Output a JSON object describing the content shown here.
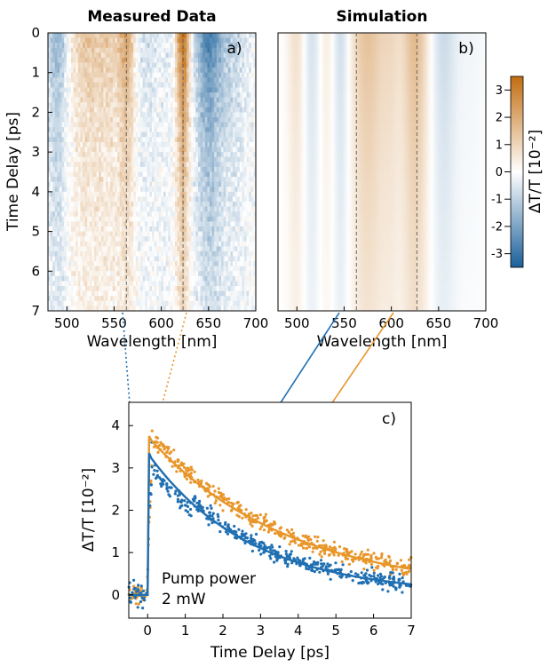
{
  "chart_data": [
    {
      "panel": "a)",
      "type": "heatmap",
      "title": "Measured Data",
      "xlabel": "Wavelength [nm]",
      "ylabel": "Time Delay [ps]",
      "xlim": [
        480,
        700
      ],
      "ylim": [
        7,
        0
      ],
      "x_ticks": [
        "500",
        "550",
        "600",
        "650",
        "700"
      ],
      "y_ticks": [
        "0",
        "1",
        "2",
        "3",
        "4",
        "5",
        "6",
        "7"
      ],
      "markers_nm": [
        563,
        623
      ],
      "bands": [
        {
          "center_nm": 490,
          "width_nm": 8,
          "peak": -1.8
        },
        {
          "center_nm": 522,
          "width_nm": 14,
          "peak": 1.4
        },
        {
          "center_nm": 545,
          "width_nm": 8,
          "peak": 0.9
        },
        {
          "center_nm": 563,
          "width_nm": 6,
          "peak": 2.3
        },
        {
          "center_nm": 585,
          "width_nm": 9,
          "peak": -0.7
        },
        {
          "center_nm": 606,
          "width_nm": 6,
          "peak": -0.4
        },
        {
          "center_nm": 623,
          "width_nm": 5,
          "peak": 3.6
        },
        {
          "center_nm": 650,
          "width_nm": 10,
          "peak": -2.8
        },
        {
          "center_nm": 675,
          "width_nm": 12,
          "peak": -1.0
        }
      ]
    },
    {
      "panel": "b)",
      "type": "heatmap",
      "title": "Simulation",
      "xlabel": "Wavelength [nm]",
      "xlim": [
        480,
        700
      ],
      "ylim": [
        7,
        0
      ],
      "x_ticks": [
        "500",
        "550",
        "600",
        "650",
        "700"
      ],
      "markers_nm": [
        563,
        627
      ],
      "bands": [
        {
          "center_nm": 500,
          "width_nm": 7,
          "peak": 0.8
        },
        {
          "center_nm": 515,
          "width_nm": 7,
          "peak": -0.7
        },
        {
          "center_nm": 532,
          "width_nm": 6,
          "peak": 0.5
        },
        {
          "center_nm": 547,
          "width_nm": 7,
          "peak": -0.9
        },
        {
          "center_nm": 575,
          "width_nm": 14,
          "peak": 1.5
        },
        {
          "center_nm": 600,
          "width_nm": 7,
          "peak": 0.6
        },
        {
          "center_nm": 625,
          "width_nm": 10,
          "peak": 1.7
        },
        {
          "center_nm": 655,
          "width_nm": 10,
          "peak": -0.8
        },
        {
          "center_nm": 685,
          "width_nm": 12,
          "peak": -0.2
        }
      ]
    },
    {
      "panel": "c)",
      "type": "scatter",
      "xlabel": "Time Delay [ps]",
      "ylabel": "ΔT/T [10⁻²]",
      "xlim": [
        -0.5,
        7
      ],
      "ylim": [
        -0.55,
        4.55
      ],
      "x_ticks": [
        "0",
        "1",
        "2",
        "3",
        "4",
        "5",
        "6",
        "7"
      ],
      "y_ticks": [
        "0",
        "1",
        "2",
        "3",
        "4"
      ],
      "annotation": [
        "Pump power",
        "2 mW"
      ],
      "series": [
        {
          "color": "#e8962a",
          "fit": {
            "A": 3.7,
            "tau": 3.7,
            "offset": 0.05
          }
        },
        {
          "color": "#1f6fb2",
          "fit": {
            "A": 3.35,
            "tau": 2.7,
            "offset": 0.0
          }
        }
      ]
    }
  ],
  "colorbar": {
    "label": "ΔT/T  [10⁻²]",
    "ticks": [
      "3",
      "2",
      "1",
      "0",
      "-1",
      "-2",
      "-3"
    ],
    "range": [
      -3.5,
      3.5
    ],
    "colors": {
      "negative": "#1a5f99",
      "zero": "#ffffff",
      "positive": "#c26d10"
    }
  },
  "series_colors": {
    "orange": "#e8962a",
    "blue": "#1f6fb2"
  }
}
